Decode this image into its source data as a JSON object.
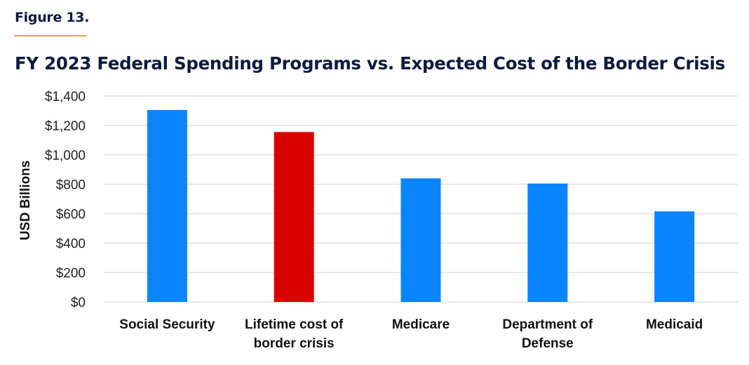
{
  "figure_label": "Figure 13.",
  "chart_data": {
    "type": "bar",
    "title": "FY 2023 Federal Spending Programs vs. Expected Cost of the Border Crisis",
    "xlabel": "",
    "ylabel": "USD Billions",
    "ylim": [
      0,
      1400
    ],
    "yticks": [
      0,
      200,
      400,
      600,
      800,
      1000,
      1200,
      1400
    ],
    "ytick_labels": [
      "$0",
      "$200",
      "$400",
      "$600",
      "$800",
      "$1,000",
      "$1,200",
      "$1,400"
    ],
    "grid": true,
    "categories": [
      [
        "Social Security"
      ],
      [
        "Lifetime cost of",
        "border crisis"
      ],
      [
        "Medicare"
      ],
      [
        "Department of",
        "Defense"
      ],
      [
        "Medicaid"
      ]
    ],
    "values": [
      1305,
      1155,
      840,
      805,
      616
    ],
    "colors": [
      "#0a84ff",
      "#d90000",
      "#0a84ff",
      "#0a84ff",
      "#0a84ff"
    ],
    "gridline_color": "#e0e0e0"
  }
}
